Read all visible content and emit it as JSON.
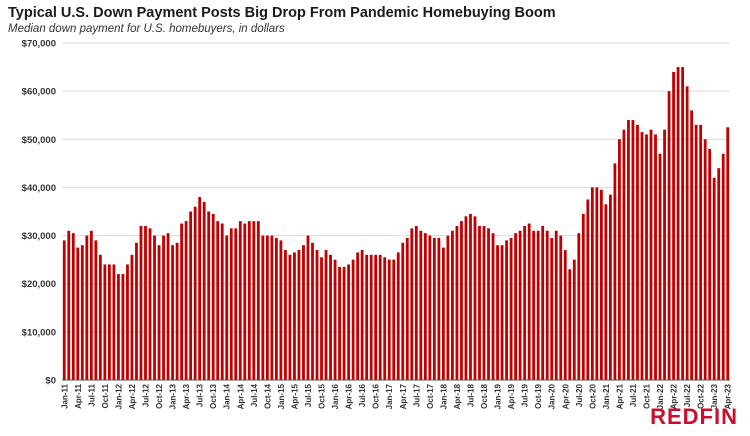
{
  "chart_data": {
    "type": "bar",
    "title": "Typical U.S. Down Payment Posts Big Drop From Pandemic Homebuying Boom",
    "subtitle": "Median down payment for U.S. homebuyers, in dollars",
    "xlabel": "",
    "ylabel": "",
    "ylim": [
      0,
      70000
    ],
    "yticks": [
      0,
      10000,
      20000,
      30000,
      40000,
      50000,
      60000,
      70000
    ],
    "ytick_labels": [
      "$0",
      "$10,000",
      "$20,000",
      "$30,000",
      "$40,000",
      "$50,000",
      "$60,000",
      "$70,000"
    ],
    "grid": true,
    "bar_color": "#c00000",
    "start_month": "Jan-11",
    "categories": [
      "Jan-11",
      "Feb-11",
      "Mar-11",
      "Apr-11",
      "May-11",
      "Jun-11",
      "Jul-11",
      "Aug-11",
      "Sep-11",
      "Oct-11",
      "Nov-11",
      "Dec-11",
      "Jan-12",
      "Feb-12",
      "Mar-12",
      "Apr-12",
      "May-12",
      "Jun-12",
      "Jul-12",
      "Aug-12",
      "Sep-12",
      "Oct-12",
      "Nov-12",
      "Dec-12",
      "Jan-13",
      "Feb-13",
      "Mar-13",
      "Apr-13",
      "May-13",
      "Jun-13",
      "Jul-13",
      "Aug-13",
      "Sep-13",
      "Oct-13",
      "Nov-13",
      "Dec-13",
      "Jan-14",
      "Feb-14",
      "Mar-14",
      "Apr-14",
      "May-14",
      "Jun-14",
      "Jul-14",
      "Aug-14",
      "Sep-14",
      "Oct-14",
      "Nov-14",
      "Dec-14",
      "Jan-15",
      "Feb-15",
      "Mar-15",
      "Apr-15",
      "May-15",
      "Jun-15",
      "Jul-15",
      "Aug-15",
      "Sep-15",
      "Oct-15",
      "Nov-15",
      "Dec-15",
      "Jan-16",
      "Feb-16",
      "Mar-16",
      "Apr-16",
      "May-16",
      "Jun-16",
      "Jul-16",
      "Aug-16",
      "Sep-16",
      "Oct-16",
      "Nov-16",
      "Dec-16",
      "Jan-17",
      "Feb-17",
      "Mar-17",
      "Apr-17",
      "May-17",
      "Jun-17",
      "Jul-17",
      "Aug-17",
      "Sep-17",
      "Oct-17",
      "Nov-17",
      "Dec-17",
      "Jan-18",
      "Feb-18",
      "Mar-18",
      "Apr-18",
      "May-18",
      "Jun-18",
      "Jul-18",
      "Aug-18",
      "Sep-18",
      "Oct-18",
      "Nov-18",
      "Dec-18",
      "Jan-19",
      "Feb-19",
      "Mar-19",
      "Apr-19",
      "May-19",
      "Jun-19",
      "Jul-19",
      "Aug-19",
      "Sep-19",
      "Oct-19",
      "Nov-19",
      "Dec-19",
      "Jan-20",
      "Feb-20",
      "Mar-20",
      "Apr-20",
      "May-20",
      "Jun-20",
      "Jul-20",
      "Aug-20",
      "Sep-20",
      "Oct-20",
      "Nov-20",
      "Dec-20",
      "Jan-21",
      "Feb-21",
      "Mar-21",
      "Apr-21",
      "May-21",
      "Jun-21",
      "Jul-21",
      "Aug-21",
      "Sep-21",
      "Oct-21",
      "Nov-21",
      "Dec-21",
      "Jan-22",
      "Feb-22",
      "Mar-22",
      "Apr-22",
      "May-22",
      "Jun-22",
      "Jul-22",
      "Aug-22",
      "Sep-22",
      "Oct-22",
      "Nov-22",
      "Dec-22",
      "Jan-23",
      "Feb-23",
      "Mar-23",
      "Apr-23"
    ],
    "tick_labels": [
      "Jan-11",
      "Apr-11",
      "Jul-11",
      "Oct-11",
      "Jan-12",
      "Apr-12",
      "Jul-12",
      "Oct-12",
      "Jan-13",
      "Apr-13",
      "Jul-13",
      "Oct-13",
      "Jan-14",
      "Apr-14",
      "Jul-14",
      "Oct-14",
      "Jan-15",
      "Apr-15",
      "Jul-15",
      "Oct-15",
      "Jan-16",
      "Apr-16",
      "Jul-16",
      "Oct-16",
      "Jan-17",
      "Apr-17",
      "Jul-17",
      "Oct-17",
      "Jan-18",
      "Apr-18",
      "Jul-18",
      "Oct-18",
      "Jan-19",
      "Apr-19",
      "Jul-19",
      "Oct-19",
      "Jan-20",
      "Apr-20",
      "Jul-20",
      "Oct-20",
      "Jan-21",
      "Apr-21",
      "Jul-21",
      "Oct-21",
      "Jan-22",
      "Apr-22",
      "Jul-22",
      "Oct-22",
      "Jan-23",
      "Apr-23"
    ],
    "values": [
      29000,
      31000,
      30500,
      27500,
      28000,
      30000,
      31000,
      29000,
      26000,
      24000,
      24000,
      24000,
      22000,
      22000,
      24000,
      26000,
      28500,
      32000,
      32000,
      31500,
      30000,
      28000,
      30000,
      30500,
      28000,
      28500,
      32500,
      33000,
      35000,
      36000,
      38000,
      37000,
      35000,
      34500,
      33000,
      32500,
      30000,
      31500,
      31500,
      33000,
      32500,
      33000,
      33000,
      33000,
      30000,
      30000,
      30000,
      29500,
      29000,
      27000,
      26000,
      26500,
      27000,
      28000,
      30000,
      28500,
      27000,
      25500,
      27000,
      26000,
      25000,
      23500,
      23500,
      24000,
      25000,
      26500,
      27000,
      26000,
      26000,
      26000,
      26000,
      25500,
      25000,
      25000,
      26500,
      28500,
      29500,
      31500,
      32000,
      31000,
      30500,
      30000,
      29500,
      29500,
      27500,
      30000,
      31000,
      32000,
      33000,
      34000,
      34500,
      34000,
      32000,
      32000,
      31500,
      30500,
      28000,
      28000,
      29000,
      29500,
      30500,
      31000,
      32000,
      32500,
      31000,
      31000,
      32000,
      31000,
      29500,
      31000,
      30000,
      27000,
      23000,
      25000,
      30500,
      34500,
      37500,
      40000,
      40000,
      39500,
      36500,
      38500,
      45000,
      50000,
      52000,
      54000,
      54000,
      53000,
      51500,
      51000,
      52000,
      51000,
      47000,
      52000,
      60000,
      64000,
      65000,
      65000,
      61000,
      56000,
      53000,
      53000,
      50000,
      48000,
      42000,
      44000,
      47000,
      52500
    ]
  },
  "brand": {
    "logo_text": "REDFIN",
    "color": "#c8102e"
  }
}
